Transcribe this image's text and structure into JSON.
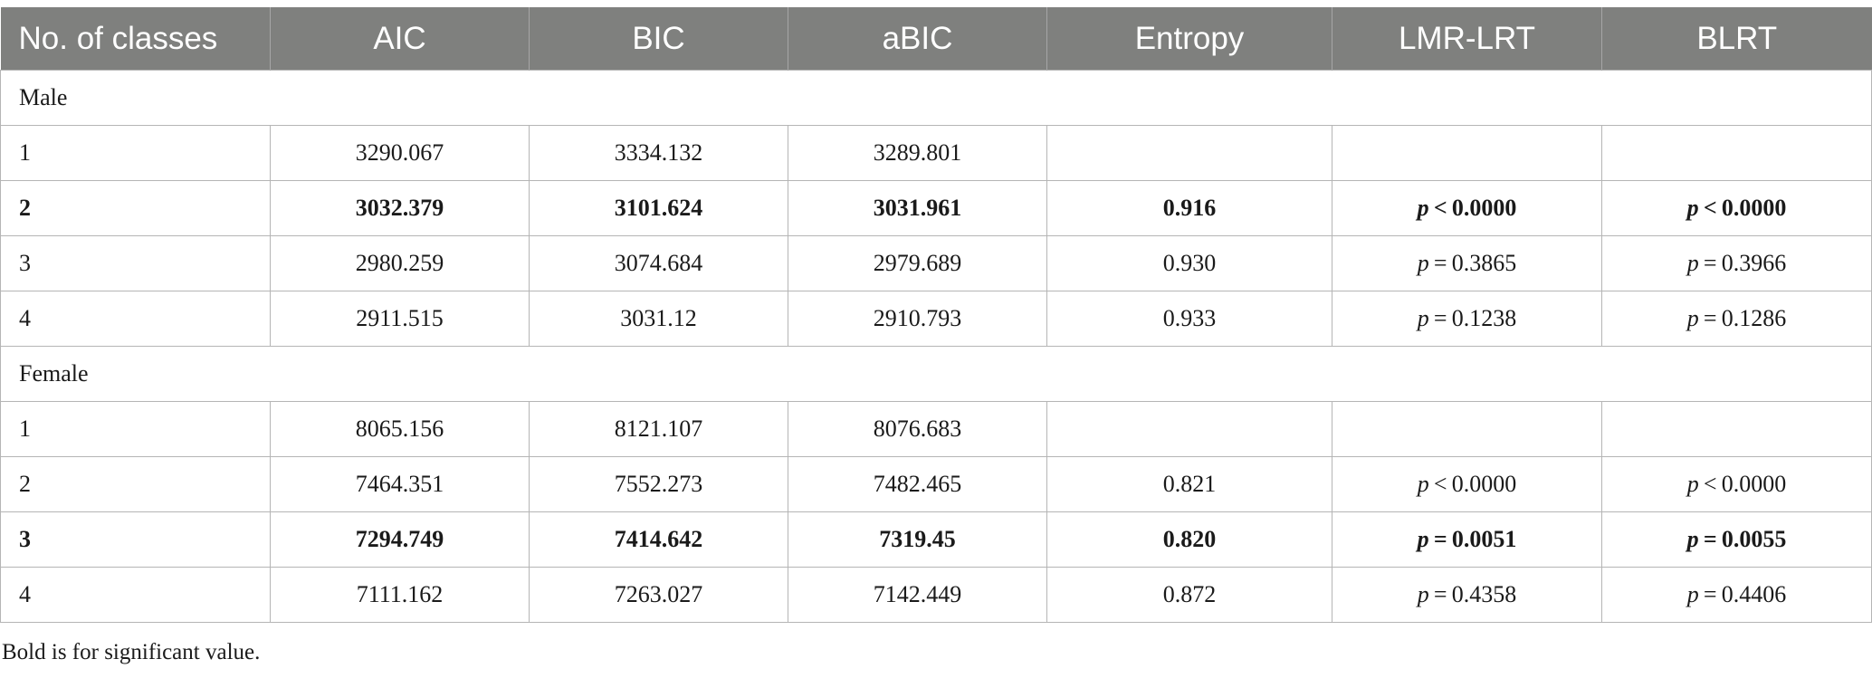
{
  "table": {
    "headers": [
      "No. of classes",
      "AIC",
      "BIC",
      "aBIC",
      "Entropy",
      "LMR-LRT",
      "BLRT"
    ],
    "groups": [
      {
        "label": "Male",
        "rows": [
          {
            "cells": [
              "1",
              "3290.067",
              "3334.132",
              "3289.801",
              "",
              "",
              ""
            ],
            "bold": false
          },
          {
            "cells": [
              "2",
              "3032.379",
              "3101.624",
              "3031.961",
              "0.916",
              "p < 0.0000",
              "p < 0.0000"
            ],
            "bold": true
          },
          {
            "cells": [
              "3",
              "2980.259",
              "3074.684",
              "2979.689",
              "0.930",
              "p = 0.3865",
              "p = 0.3966"
            ],
            "bold": false
          },
          {
            "cells": [
              "4",
              "2911.515",
              "3031.12",
              "2910.793",
              "0.933",
              "p = 0.1238",
              "p = 0.1286"
            ],
            "bold": false
          }
        ]
      },
      {
        "label": "Female",
        "rows": [
          {
            "cells": [
              "1",
              "8065.156",
              "8121.107",
              "8076.683",
              "",
              "",
              ""
            ],
            "bold": false
          },
          {
            "cells": [
              "2",
              "7464.351",
              "7552.273",
              "7482.465",
              "0.821",
              "p < 0.0000",
              "p < 0.0000"
            ],
            "bold": false
          },
          {
            "cells": [
              "3",
              "7294.749",
              "7414.642",
              "7319.45",
              "0.820",
              "p = 0.0051",
              "p = 0.0055"
            ],
            "bold": true
          },
          {
            "cells": [
              "4",
              "7111.162",
              "7263.027",
              "7142.449",
              "0.872",
              "p = 0.4358",
              "p = 0.4406"
            ],
            "bold": false
          }
        ]
      }
    ]
  },
  "footnote": "Bold is for significant value."
}
